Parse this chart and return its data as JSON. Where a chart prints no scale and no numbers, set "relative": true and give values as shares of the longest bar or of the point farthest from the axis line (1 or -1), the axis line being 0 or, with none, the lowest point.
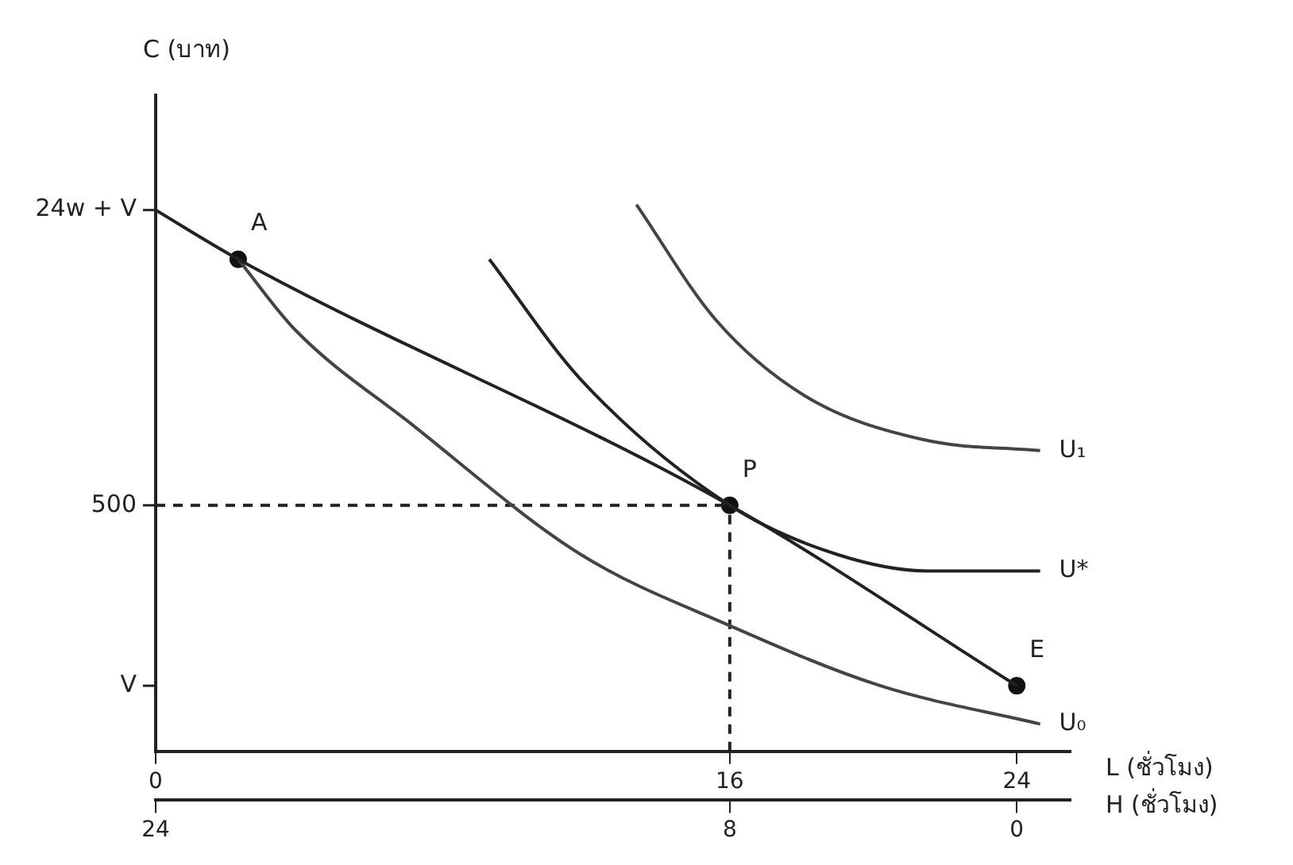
{
  "chart_data": {
    "type": "line",
    "relative": true,
    "xlabel": "L (ชั่วโมง)",
    "x2label": "H (ชั่วโมง)",
    "xlim": [
      0,
      25.5
    ],
    "xticks": [
      0,
      16,
      24
    ],
    "x2lim": [
      24,
      -1.5
    ],
    "x2ticks": [
      24,
      8,
      0
    ],
    "grid": false,
    "legend": false,
    "series": [
      {
        "color": "#222222",
        "x": [
          0,
          2.3,
          16,
          24
        ],
        "values": [
          0.99,
          0.9,
          0.45,
          0.12
        ],
        "marker": "none",
        "line_style": "solid"
      },
      {
        "name": "U₀",
        "color": "#444444",
        "x": [
          2.3,
          3.9,
          7.1,
          11.85,
          16,
          20.2,
          24.65
        ],
        "values": [
          0.9,
          0.77,
          0.6,
          0.36,
          0.23,
          0.12,
          0.05
        ],
        "marker": "none",
        "line_style": "solid"
      },
      {
        "name": "U*",
        "color": "#222222",
        "x": [
          9.3,
          11.85,
          16,
          19,
          21.5,
          24.65
        ],
        "values": [
          0.9,
          0.68,
          0.45,
          0.36,
          0.33,
          0.33
        ],
        "marker": "none",
        "line_style": "solid"
      },
      {
        "name": "U₁",
        "color": "#444444",
        "x": [
          13.4,
          15.6,
          18.1,
          21.4,
          24.65
        ],
        "values": [
          1,
          0.79,
          0.65,
          0.57,
          0.55
        ],
        "marker": "none",
        "line_style": "solid"
      },
      {
        "color": "#222222",
        "x": [
          0,
          16
        ],
        "values": [
          0.45,
          0.45
        ],
        "marker": "none",
        "line_style": "dashed"
      },
      {
        "color": "#222222",
        "x": [
          16,
          16
        ],
        "values": [
          0,
          0.45
        ],
        "marker": "none",
        "line_style": "dashed"
      },
      {
        "type": "scatter",
        "color": "#111111",
        "x": [
          2.3,
          16,
          24
        ],
        "values": [
          0.9,
          0.45,
          0.12
        ],
        "marker": "circle"
      }
    ],
    "annotations": [
      "C (บาท)",
      {
        "text": "24w + V",
        "x": 0,
        "y": 0.99
      },
      {
        "text": "500",
        "x": 0,
        "y": 0.45
      },
      "V",
      {
        "text": "A",
        "x": 2.3,
        "y": 0.9
      },
      {
        "text": "P",
        "x": 16,
        "y": 0.45
      },
      {
        "text": "E",
        "x": 24,
        "y": 0.12
      }
    ]
  }
}
